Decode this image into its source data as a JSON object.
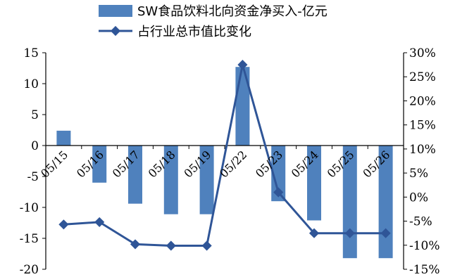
{
  "chart_data": {
    "type": "bar+line",
    "categories": [
      "05/15",
      "05/16",
      "05/17",
      "05/18",
      "05/19",
      "05/22",
      "05/23",
      "05/24",
      "05/25",
      "05/26"
    ],
    "series": [
      {
        "name": "SW食品饮料北向资金净买入-亿元",
        "type": "bar",
        "axis": "left",
        "color": "#4f81bd",
        "values": [
          2.4,
          -6.0,
          -9.4,
          -11.1,
          -11.1,
          12.7,
          -9.0,
          -12.1,
          -18.2,
          -18.2
        ]
      },
      {
        "name": "占行业总市值比变化",
        "type": "line",
        "axis": "right",
        "color": "#2f5597",
        "values": [
          -5.7,
          -5.2,
          -9.8,
          -10.1,
          -10.1,
          27.5,
          1.0,
          -7.5,
          -7.5,
          -7.5
        ]
      }
    ],
    "y_left": {
      "min": -20,
      "max": 15,
      "ticks": [
        15,
        10,
        5,
        0,
        -5,
        -10,
        -15,
        -20
      ]
    },
    "y_right": {
      "min": -15,
      "max": 30,
      "ticks": [
        "30%",
        "25%",
        "20%",
        "15%",
        "10%",
        "5%",
        "0%",
        "-5%",
        "-10%",
        "-15%"
      ]
    },
    "legend_position": "top",
    "grid": false
  }
}
